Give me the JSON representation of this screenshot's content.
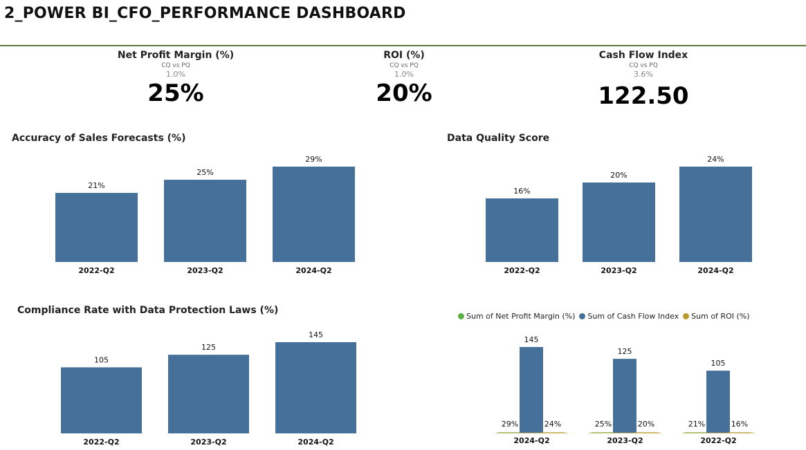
{
  "page": {
    "title": "2_POWER BI_CFO_PERFORMANCE DASHBOARD"
  },
  "kpis": [
    {
      "label": "Net Profit Margin (%)",
      "sub": "CQ vs PQ",
      "change": "1.0%",
      "value": "25%"
    },
    {
      "label": "ROI (%)",
      "sub": "CQ vs PQ",
      "change": "1.0%",
      "value": "20%"
    },
    {
      "label": "Cash Flow Index",
      "sub": "CQ vs PQ",
      "change": "3.6%",
      "value": "122.50"
    }
  ],
  "colors": {
    "bar": "#44709a",
    "rule": "#5b7a3f",
    "net_profit": "#5cb046",
    "cash_flow": "#44709a",
    "roi": "#b99a2b"
  },
  "chart_data": [
    {
      "type": "bar",
      "title": "Accuracy of Sales Forecasts (%)",
      "categories": [
        "2022-Q2",
        "2023-Q2",
        "2024-Q2"
      ],
      "values": [
        21,
        25,
        29
      ],
      "labels": [
        "21%",
        "25%",
        "29%"
      ],
      "ylim": [
        0,
        29
      ]
    },
    {
      "type": "bar",
      "title": "Data Quality Score",
      "categories": [
        "2022-Q2",
        "2023-Q2",
        "2024-Q2"
      ],
      "values": [
        16,
        20,
        24
      ],
      "labels": [
        "16%",
        "20%",
        "24%"
      ],
      "ylim": [
        0,
        24
      ]
    },
    {
      "type": "bar",
      "title": "Compliance Rate with Data Protection Laws (%)",
      "categories": [
        "2022-Q2",
        "2023-Q2",
        "2024-Q2"
      ],
      "values": [
        105,
        125,
        145
      ],
      "labels": [
        "105",
        "125",
        "145"
      ],
      "ylim": [
        0,
        145
      ]
    },
    {
      "type": "bar",
      "title": "",
      "legend_position": "top",
      "categories": [
        "2024-Q2",
        "2023-Q2",
        "2022-Q2"
      ],
      "series": [
        {
          "name": "Sum of Net Profit Margin (%)",
          "values": [
            0.29,
            0.25,
            0.21
          ],
          "labels": [
            "29%",
            "25%",
            "21%"
          ]
        },
        {
          "name": "Sum of Cash Flow Index",
          "values": [
            145,
            125,
            105
          ],
          "labels": [
            "145",
            "125",
            "105"
          ]
        },
        {
          "name": "Sum of ROI (%)",
          "values": [
            0.24,
            0.2,
            0.16
          ],
          "labels": [
            "24%",
            "20%",
            "16%"
          ]
        }
      ],
      "ylim": [
        0,
        145
      ]
    }
  ]
}
